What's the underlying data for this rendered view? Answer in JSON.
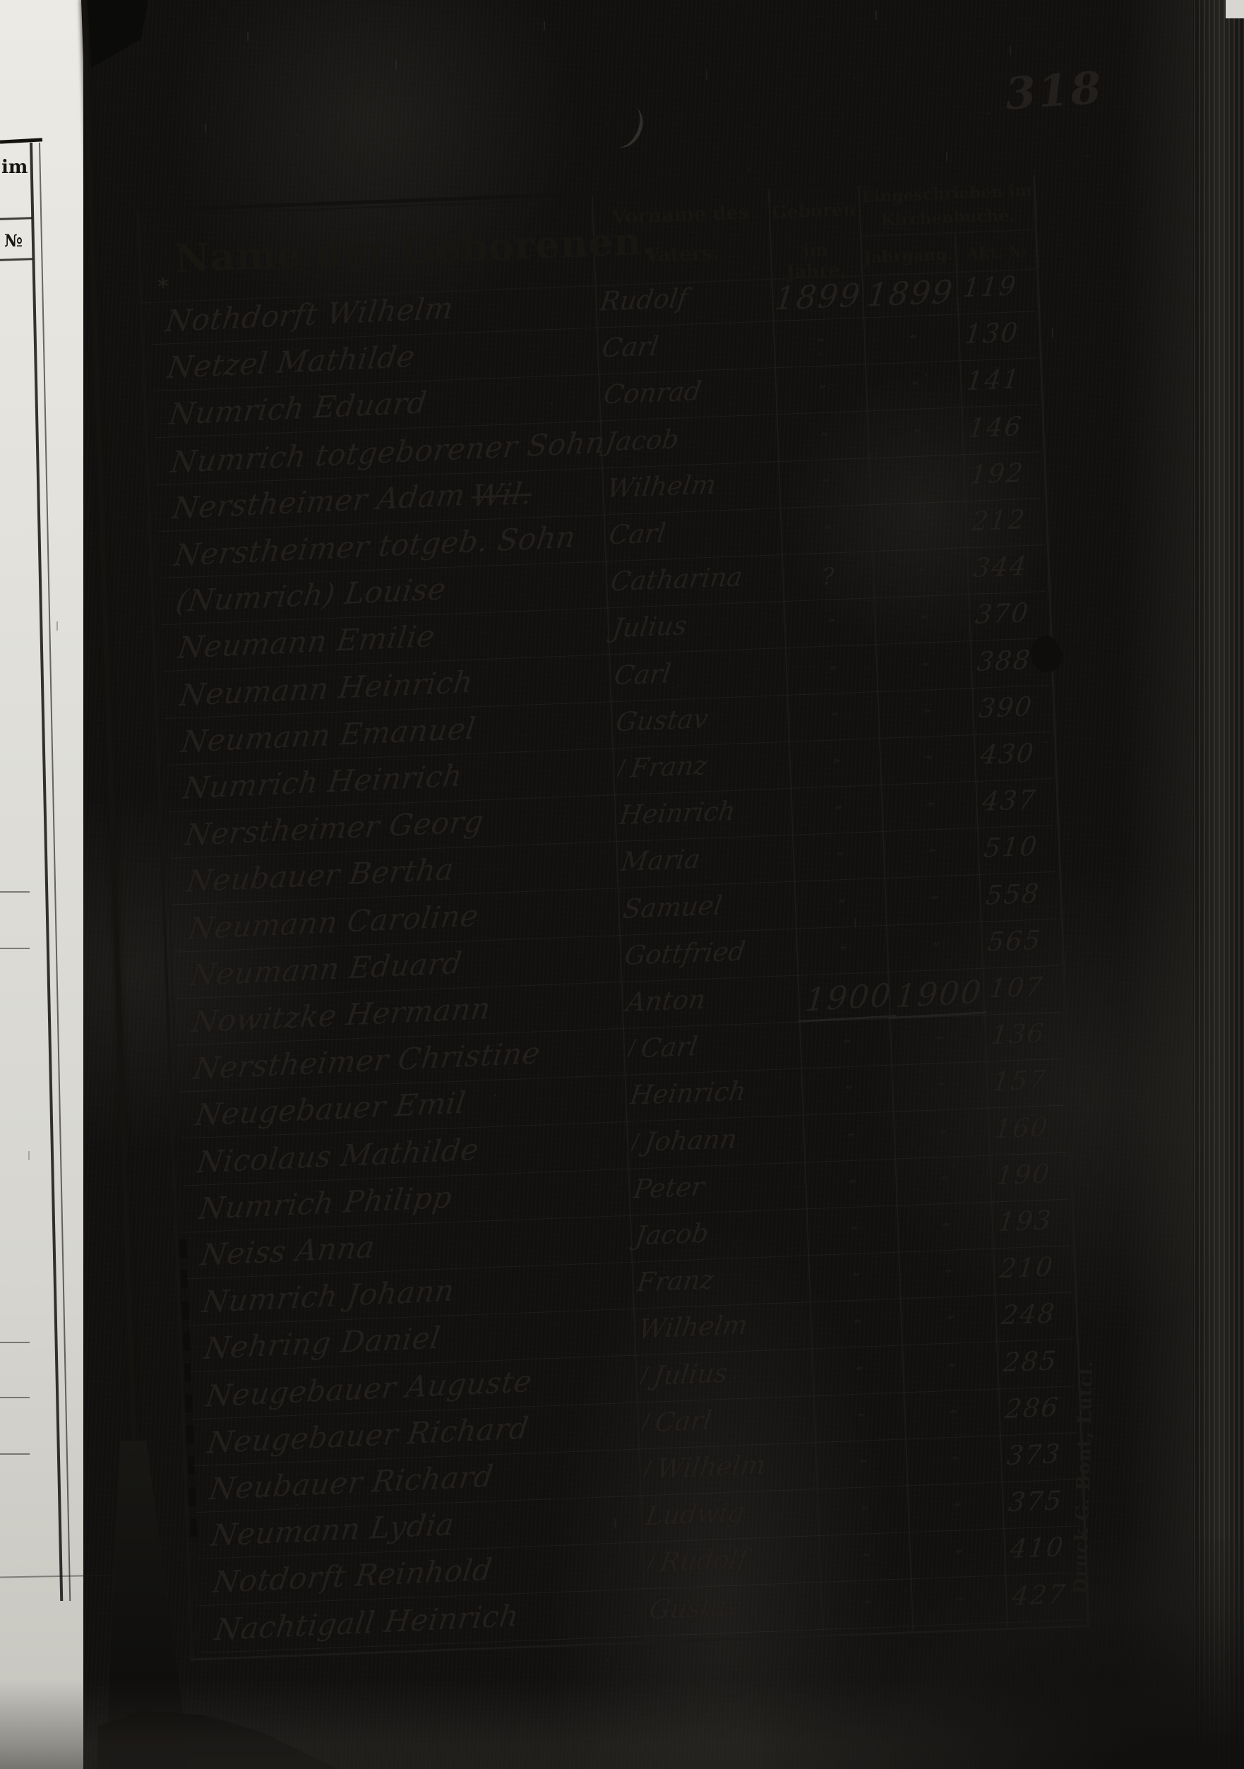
{
  "page": {
    "number": "318",
    "imprint": "Druck G. Bont, Lutcl.",
    "left_margin": {
      "fragment_top": "im",
      "fragment_bottom": "№"
    },
    "margin_mark": "*"
  },
  "table": {
    "check_glyph": "/",
    "header": {
      "name": "Name der Geborenen.",
      "father_line1": "Vorname des",
      "father_line2": "Vaters.",
      "born_line1": "Geboren",
      "born_line2": "im Jahre.",
      "registered_line1": "Eingeschrieben im",
      "registered_line2": "Kirchenbuche.",
      "jahrgang": "Jahrgang.",
      "akt": "Akt. №"
    },
    "rows": [
      {
        "name": "Nothdorft Wilhelm",
        "father": "Rudolf",
        "born": "1899",
        "jahrgang": "1899",
        "akt": "119"
      },
      {
        "name": "Netzel Mathilde",
        "father": "Carl",
        "born": "″",
        "jahrgang": "″",
        "akt": "130"
      },
      {
        "name": "Numrich Eduard",
        "father": "Conrad",
        "born": "″",
        "jahrgang": "″",
        "akt": "141"
      },
      {
        "name": "Numrich totgeborener Sohn",
        "father": "Jacob",
        "born": "″",
        "jahrgang": "″",
        "akt": "146"
      },
      {
        "name": "Nerstheimer Adam",
        "struck": "Wil.",
        "father": "Wilhelm",
        "born": "″",
        "jahrgang": "″",
        "akt": "192"
      },
      {
        "name": "Nerstheimer totgeb. Sohn",
        "father": "Carl",
        "born": "″",
        "jahrgang": "″",
        "akt": "212"
      },
      {
        "name": "(Numrich) Louise",
        "father": "Catharina",
        "born": "?",
        "jahrgang": "″",
        "akt": "344"
      },
      {
        "name": "Neumann Emilie",
        "father": "Julius",
        "born": "″",
        "jahrgang": "″",
        "akt": "370"
      },
      {
        "name": "Neumann Heinrich",
        "father": "Carl",
        "born": "″",
        "jahrgang": "″",
        "akt": "388"
      },
      {
        "name": "Neumann Emanuel",
        "father": "Gustav",
        "born": "″",
        "jahrgang": "″",
        "akt": "390"
      },
      {
        "name": "Numrich Heinrich",
        "father": "Franz",
        "check": true,
        "born": "″",
        "jahrgang": "″",
        "akt": "430"
      },
      {
        "name": "Nerstheimer Georg",
        "father": "Heinrich",
        "born": "″",
        "jahrgang": "″",
        "akt": "437"
      },
      {
        "name": "Neubauer Bertha",
        "father": "Maria",
        "born": "″",
        "jahrgang": "″",
        "akt": "510"
      },
      {
        "name": "Neumann Caroline",
        "father": "Samuel",
        "born": "″",
        "jahrgang": "″",
        "akt": "558"
      },
      {
        "name": "Neumann Eduard",
        "father": "Gottfried",
        "born": "″",
        "jahrgang": "″",
        "akt": "565"
      },
      {
        "name": "Nowitzke Hermann",
        "father": "Anton",
        "born": "1900",
        "jahrgang": "1900",
        "akt": "107",
        "underline": true
      },
      {
        "name": "Nerstheimer Christine",
        "father": "Carl",
        "check": true,
        "born": "″",
        "jahrgang": "″",
        "akt": "136"
      },
      {
        "name": "Neugebauer Emil",
        "father": "Heinrich",
        "born": "″",
        "jahrgang": "″",
        "akt": "157"
      },
      {
        "name": "Nicolaus Mathilde",
        "father": "Johann",
        "check": true,
        "born": "″",
        "jahrgang": "″",
        "akt": "160"
      },
      {
        "name": "Numrich Philipp",
        "father": "Peter",
        "born": "″",
        "jahrgang": "″",
        "akt": "190"
      },
      {
        "name": "Neiss Anna",
        "father": "Jacob",
        "born": "″",
        "jahrgang": "″",
        "akt": "193"
      },
      {
        "name": "Numrich Johann",
        "father": "Franz",
        "born": "″",
        "jahrgang": "″",
        "akt": "210"
      },
      {
        "name": "Nehring Daniel",
        "father": "Wilhelm",
        "born": "″",
        "jahrgang": "″",
        "akt": "248"
      },
      {
        "name": "Neugebauer Auguste",
        "father": "Julius",
        "check": true,
        "born": "″",
        "jahrgang": "″",
        "akt": "285"
      },
      {
        "name": "Neugebauer Richard",
        "father": "Carl",
        "check": true,
        "born": "″",
        "jahrgang": "″",
        "akt": "286"
      },
      {
        "name": "Neubauer Richard",
        "father": "Wilhelm",
        "check": true,
        "born": "″",
        "jahrgang": "″",
        "akt": "373"
      },
      {
        "name": "Neumann Lydia",
        "father": "Ludwig",
        "born": "″",
        "jahrgang": "″",
        "akt": "375"
      },
      {
        "name": "Notdorft Reinhold",
        "father": "Rudolf",
        "check": true,
        "born": "″",
        "jahrgang": "″",
        "akt": "410"
      },
      {
        "name": "Nachtigall Heinrich",
        "father": "Gustav",
        "born": "″",
        "jahrgang": "″",
        "akt": "427"
      }
    ]
  }
}
